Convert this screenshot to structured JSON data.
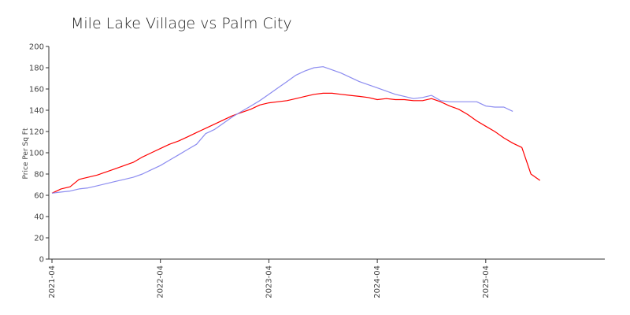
{
  "chart_data": {
    "type": "line",
    "title": "Mile Lake Village vs Palm City",
    "xlabel": "",
    "ylabel": "Price Per Sq Ft",
    "ylim": [
      0,
      200
    ],
    "yticks": [
      0,
      20,
      40,
      60,
      80,
      100,
      120,
      140,
      160,
      180,
      200
    ],
    "xlim": [
      "2021-04",
      "2026-05"
    ],
    "xticks": [
      "2021-04",
      "2022-04",
      "2023-04",
      "2024-04",
      "2025-04"
    ],
    "grid": false,
    "legend": "none",
    "series": [
      {
        "color": "#ff0000",
        "points": [
          [
            "2021-04",
            62
          ],
          [
            "2021-05",
            66
          ],
          [
            "2021-06",
            68
          ],
          [
            "2021-07",
            75
          ],
          [
            "2021-08",
            77
          ],
          [
            "2021-09",
            79
          ],
          [
            "2021-10",
            82
          ],
          [
            "2021-11",
            85
          ],
          [
            "2021-12",
            88
          ],
          [
            "2022-01",
            91
          ],
          [
            "2022-02",
            96
          ],
          [
            "2022-03",
            100
          ],
          [
            "2022-04",
            104
          ],
          [
            "2022-05",
            108
          ],
          [
            "2022-06",
            111
          ],
          [
            "2022-07",
            115
          ],
          [
            "2022-08",
            119
          ],
          [
            "2022-09",
            123
          ],
          [
            "2022-10",
            127
          ],
          [
            "2022-11",
            131
          ],
          [
            "2022-12",
            135
          ],
          [
            "2023-01",
            138
          ],
          [
            "2023-02",
            141
          ],
          [
            "2023-03",
            145
          ],
          [
            "2023-04",
            147
          ],
          [
            "2023-05",
            148
          ],
          [
            "2023-06",
            149
          ],
          [
            "2023-07",
            151
          ],
          [
            "2023-08",
            153
          ],
          [
            "2023-09",
            155
          ],
          [
            "2023-10",
            156
          ],
          [
            "2023-11",
            156
          ],
          [
            "2023-12",
            155
          ],
          [
            "2024-01",
            154
          ],
          [
            "2024-02",
            153
          ],
          [
            "2024-03",
            152
          ],
          [
            "2024-04",
            150
          ],
          [
            "2024-05",
            151
          ],
          [
            "2024-06",
            150
          ],
          [
            "2024-07",
            150
          ],
          [
            "2024-08",
            149
          ],
          [
            "2024-09",
            149
          ],
          [
            "2024-10",
            151
          ],
          [
            "2024-11",
            148
          ],
          [
            "2024-12",
            144
          ],
          [
            "2025-01",
            141
          ],
          [
            "2025-02",
            136
          ],
          [
            "2025-03",
            130
          ],
          [
            "2025-04",
            125
          ],
          [
            "2025-05",
            120
          ],
          [
            "2025-06",
            114
          ],
          [
            "2025-07",
            109
          ],
          [
            "2025-08",
            105
          ],
          [
            "2025-09",
            80
          ],
          [
            "2025-10",
            74
          ]
        ]
      },
      {
        "color": "#8c8cf0",
        "points": [
          [
            "2021-04",
            62
          ],
          [
            "2021-05",
            63
          ],
          [
            "2021-06",
            64
          ],
          [
            "2021-07",
            66
          ],
          [
            "2021-08",
            67
          ],
          [
            "2021-09",
            69
          ],
          [
            "2021-10",
            71
          ],
          [
            "2021-11",
            73
          ],
          [
            "2021-12",
            75
          ],
          [
            "2022-01",
            77
          ],
          [
            "2022-02",
            80
          ],
          [
            "2022-03",
            84
          ],
          [
            "2022-04",
            88
          ],
          [
            "2022-05",
            93
          ],
          [
            "2022-06",
            98
          ],
          [
            "2022-07",
            103
          ],
          [
            "2022-08",
            108
          ],
          [
            "2022-09",
            118
          ],
          [
            "2022-10",
            122
          ],
          [
            "2022-11",
            128
          ],
          [
            "2022-12",
            134
          ],
          [
            "2023-01",
            139
          ],
          [
            "2023-02",
            144
          ],
          [
            "2023-03",
            149
          ],
          [
            "2023-04",
            155
          ],
          [
            "2023-05",
            161
          ],
          [
            "2023-06",
            167
          ],
          [
            "2023-07",
            173
          ],
          [
            "2023-08",
            177
          ],
          [
            "2023-09",
            180
          ],
          [
            "2023-10",
            181
          ],
          [
            "2023-11",
            178
          ],
          [
            "2023-12",
            175
          ],
          [
            "2024-01",
            171
          ],
          [
            "2024-02",
            167
          ],
          [
            "2024-03",
            164
          ],
          [
            "2024-04",
            161
          ],
          [
            "2024-05",
            158
          ],
          [
            "2024-06",
            155
          ],
          [
            "2024-07",
            153
          ],
          [
            "2024-08",
            151
          ],
          [
            "2024-09",
            152
          ],
          [
            "2024-10",
            154
          ],
          [
            "2024-11",
            149
          ],
          [
            "2024-12",
            148
          ],
          [
            "2025-01",
            148
          ],
          [
            "2025-02",
            148
          ],
          [
            "2025-03",
            148
          ],
          [
            "2025-04",
            144
          ],
          [
            "2025-05",
            143
          ],
          [
            "2025-06",
            143
          ],
          [
            "2025-07",
            139
          ]
        ]
      }
    ]
  }
}
